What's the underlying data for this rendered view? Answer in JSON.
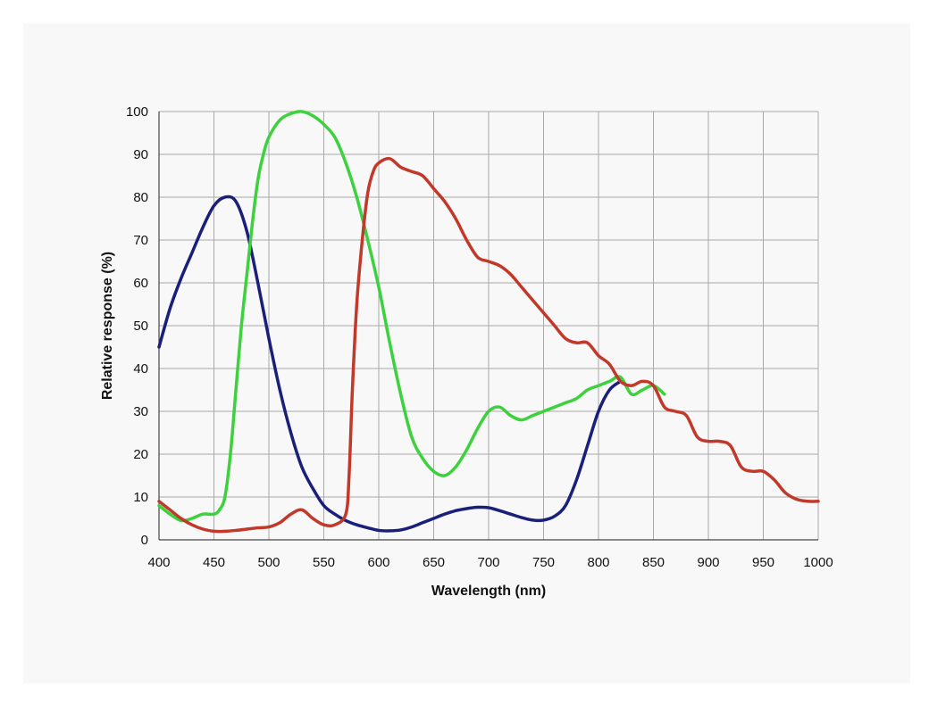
{
  "chart_data": {
    "type": "line",
    "title": "",
    "xlabel": "Wavelength (nm)",
    "ylabel": "Relative response (%)",
    "xlim": [
      400,
      1000
    ],
    "ylim": [
      0,
      100
    ],
    "x_ticks": [
      400,
      450,
      500,
      550,
      600,
      650,
      700,
      750,
      800,
      850,
      900,
      950,
      1000
    ],
    "y_ticks": [
      0,
      10,
      20,
      30,
      40,
      50,
      60,
      70,
      80,
      90,
      100
    ],
    "grid": true,
    "legend": "none",
    "series": [
      {
        "color": "#1a1f7a",
        "points": [
          [
            400,
            45
          ],
          [
            410,
            54
          ],
          [
            420,
            61
          ],
          [
            430,
            67
          ],
          [
            440,
            73
          ],
          [
            450,
            78
          ],
          [
            460,
            80
          ],
          [
            470,
            79
          ],
          [
            480,
            72
          ],
          [
            490,
            60
          ],
          [
            500,
            47
          ],
          [
            510,
            35
          ],
          [
            520,
            25
          ],
          [
            530,
            17
          ],
          [
            540,
            12
          ],
          [
            550,
            8
          ],
          [
            560,
            6
          ],
          [
            570,
            4.5
          ],
          [
            580,
            3.5
          ],
          [
            590,
            2.8
          ],
          [
            600,
            2.2
          ],
          [
            610,
            2.1
          ],
          [
            620,
            2.3
          ],
          [
            630,
            3
          ],
          [
            640,
            4
          ],
          [
            650,
            5
          ],
          [
            660,
            6
          ],
          [
            670,
            6.8
          ],
          [
            680,
            7.3
          ],
          [
            690,
            7.6
          ],
          [
            700,
            7.5
          ],
          [
            710,
            6.8
          ],
          [
            720,
            6
          ],
          [
            730,
            5.2
          ],
          [
            740,
            4.6
          ],
          [
            750,
            4.6
          ],
          [
            760,
            5.5
          ],
          [
            770,
            8
          ],
          [
            780,
            14
          ],
          [
            790,
            22
          ],
          [
            800,
            30
          ],
          [
            810,
            35
          ],
          [
            820,
            37
          ]
        ]
      },
      {
        "color": "#3dd13d",
        "points": [
          [
            400,
            8
          ],
          [
            410,
            6
          ],
          [
            420,
            4.5
          ],
          [
            430,
            5
          ],
          [
            440,
            6
          ],
          [
            450,
            6
          ],
          [
            455,
            7
          ],
          [
            460,
            10
          ],
          [
            465,
            20
          ],
          [
            470,
            35
          ],
          [
            475,
            50
          ],
          [
            480,
            62
          ],
          [
            485,
            74
          ],
          [
            490,
            84
          ],
          [
            495,
            90
          ],
          [
            500,
            94
          ],
          [
            510,
            98
          ],
          [
            520,
            99.5
          ],
          [
            530,
            100
          ],
          [
            540,
            99
          ],
          [
            550,
            97
          ],
          [
            560,
            94
          ],
          [
            570,
            88
          ],
          [
            580,
            80
          ],
          [
            590,
            70
          ],
          [
            600,
            59
          ],
          [
            610,
            46
          ],
          [
            620,
            34
          ],
          [
            630,
            24
          ],
          [
            640,
            19
          ],
          [
            650,
            16
          ],
          [
            660,
            15
          ],
          [
            670,
            17
          ],
          [
            680,
            21
          ],
          [
            690,
            26
          ],
          [
            700,
            30
          ],
          [
            710,
            31
          ],
          [
            720,
            29
          ],
          [
            730,
            28
          ],
          [
            740,
            29
          ],
          [
            750,
            30
          ],
          [
            760,
            31
          ],
          [
            770,
            32
          ],
          [
            780,
            33
          ],
          [
            790,
            35
          ],
          [
            800,
            36
          ],
          [
            810,
            37
          ],
          [
            820,
            38
          ],
          [
            830,
            34
          ],
          [
            840,
            35
          ],
          [
            850,
            36
          ],
          [
            860,
            34
          ]
        ]
      },
      {
        "color": "#c0392b",
        "points": [
          [
            400,
            9
          ],
          [
            410,
            7
          ],
          [
            420,
            5
          ],
          [
            430,
            3.5
          ],
          [
            440,
            2.5
          ],
          [
            450,
            2
          ],
          [
            460,
            2
          ],
          [
            470,
            2.2
          ],
          [
            480,
            2.5
          ],
          [
            490,
            2.8
          ],
          [
            500,
            3
          ],
          [
            510,
            4
          ],
          [
            520,
            6
          ],
          [
            530,
            7
          ],
          [
            540,
            5
          ],
          [
            550,
            3.5
          ],
          [
            560,
            3.5
          ],
          [
            570,
            6
          ],
          [
            573,
            15
          ],
          [
            576,
            35
          ],
          [
            580,
            55
          ],
          [
            585,
            70
          ],
          [
            590,
            81
          ],
          [
            595,
            86
          ],
          [
            600,
            88
          ],
          [
            610,
            89
          ],
          [
            620,
            87
          ],
          [
            630,
            86
          ],
          [
            640,
            85
          ],
          [
            650,
            82
          ],
          [
            660,
            79
          ],
          [
            670,
            75
          ],
          [
            680,
            70
          ],
          [
            690,
            66
          ],
          [
            700,
            65
          ],
          [
            710,
            64
          ],
          [
            720,
            62
          ],
          [
            730,
            59
          ],
          [
            740,
            56
          ],
          [
            750,
            53
          ],
          [
            760,
            50
          ],
          [
            770,
            47
          ],
          [
            780,
            46
          ],
          [
            790,
            46
          ],
          [
            800,
            43
          ],
          [
            810,
            41
          ],
          [
            820,
            37
          ],
          [
            830,
            36
          ],
          [
            840,
            37
          ],
          [
            850,
            36
          ],
          [
            860,
            31
          ],
          [
            870,
            30
          ],
          [
            880,
            29
          ],
          [
            890,
            24
          ],
          [
            900,
            23
          ],
          [
            910,
            23
          ],
          [
            920,
            22
          ],
          [
            930,
            17
          ],
          [
            940,
            16
          ],
          [
            950,
            16
          ],
          [
            960,
            14
          ],
          [
            970,
            11
          ],
          [
            980,
            9.5
          ],
          [
            990,
            9
          ],
          [
            1000,
            9
          ]
        ]
      }
    ]
  }
}
